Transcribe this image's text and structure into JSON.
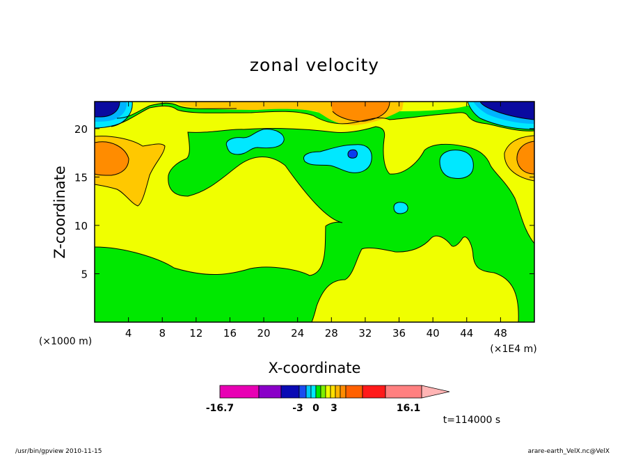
{
  "chart_data": {
    "type": "heatmap",
    "title": "zonal velocity",
    "xlabel": "X-coordinate",
    "ylabel": "Z-coordinate",
    "x_unit_label": "(×1E4 m)",
    "y_unit_label": "(×1000 m)",
    "xlim": [
      0,
      52
    ],
    "ylim": [
      0,
      22.8
    ],
    "x_ticks": [
      4,
      8,
      12,
      16,
      20,
      24,
      28,
      32,
      36,
      40,
      44,
      48
    ],
    "y_ticks": [
      5,
      10,
      15,
      20
    ],
    "colorbar": {
      "min_label": "-16.7",
      "max_label": "16.1",
      "tick_labels": [
        "-3",
        "0",
        "3"
      ],
      "colors": [
        "#e800b4",
        "#8a00c8",
        "#0a0ab4",
        "#1a4cf0",
        "#00c8f8",
        "#00e8ff",
        "#00e800",
        "#7ef000",
        "#f0ff00",
        "#ffe000",
        "#ffb400",
        "#ff8c00",
        "#ff6000",
        "#ff1a1a",
        "#ff8080",
        "#ffb4b4"
      ]
    },
    "footer_time": "t=114000 s",
    "footer_left": "/usr/bin/gpview   2010-11-15",
    "footer_right": "arare-earth_VelX.nc@VelX",
    "fill_colors": {
      "yellow": "#f0ff00",
      "green": "#00e800",
      "light_orange": "#ffc800",
      "orange": "#ff8c00",
      "cyan": "#00e8ff",
      "light_blue": "#00b4ff",
      "blue": "#0a3cf0",
      "navy": "#0a0aa0"
    }
  }
}
